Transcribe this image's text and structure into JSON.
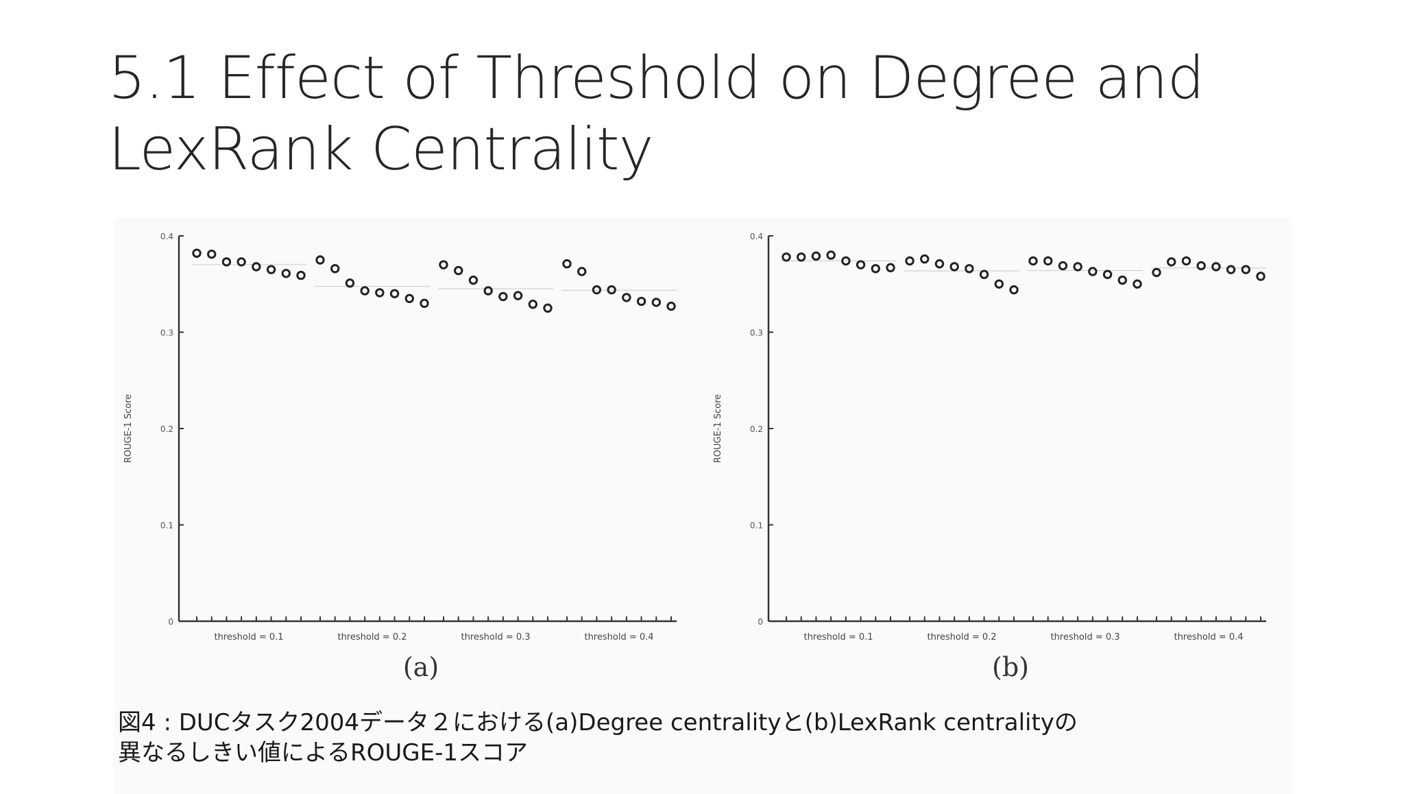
{
  "slide": {
    "title_line1": "5.1 Effect of Threshold on Degree and",
    "title_line2": "LexRank Centrality",
    "caption_line1": "図4 : DUCタスク2004データ２における(a)Degree centralityと(b)LexRank centralityの",
    "caption_line2": "異なるしきい値によるROUGE-1スコア"
  },
  "chart_data": [
    {
      "type": "scatter",
      "panel_label": "(a)",
      "ylabel": "ROUGE-1 Score",
      "ylim": [
        0,
        0.4
      ],
      "yticks": [
        "0",
        "0.1",
        "0.2",
        "0.3",
        "0.4"
      ],
      "groups": [
        {
          "label": "threshold = 0.1",
          "values": [
            0.382,
            0.381,
            0.373,
            0.373,
            0.368,
            0.365,
            0.361,
            0.359
          ]
        },
        {
          "label": "threshold = 0.2",
          "values": [
            0.375,
            0.366,
            0.351,
            0.343,
            0.341,
            0.34,
            0.335,
            0.33
          ]
        },
        {
          "label": "threshold = 0.3",
          "values": [
            0.37,
            0.364,
            0.354,
            0.343,
            0.337,
            0.338,
            0.329,
            0.325
          ]
        },
        {
          "label": "threshold = 0.4",
          "values": [
            0.371,
            0.363,
            0.344,
            0.344,
            0.336,
            0.332,
            0.331,
            0.327
          ]
        }
      ],
      "marker_color": "#222222"
    },
    {
      "type": "scatter",
      "panel_label": "(b)",
      "ylabel": "ROUGE-1 Score",
      "ylim": [
        0,
        0.4
      ],
      "yticks": [
        "0",
        "0.1",
        "0.2",
        "0.3",
        "0.4"
      ],
      "groups": [
        {
          "label": "threshold = 0.1",
          "values": [
            0.378,
            0.378,
            0.379,
            0.38,
            0.374,
            0.37,
            0.366,
            0.367
          ]
        },
        {
          "label": "threshold = 0.2",
          "values": [
            0.374,
            0.376,
            0.371,
            0.368,
            0.366,
            0.36,
            0.35,
            0.344
          ]
        },
        {
          "label": "threshold = 0.3",
          "values": [
            0.374,
            0.374,
            0.369,
            0.368,
            0.363,
            0.36,
            0.354,
            0.35
          ]
        },
        {
          "label": "threshold = 0.4",
          "values": [
            0.362,
            0.373,
            0.374,
            0.369,
            0.368,
            0.365,
            0.365,
            0.358
          ]
        }
      ],
      "marker_color": "#222222"
    }
  ]
}
